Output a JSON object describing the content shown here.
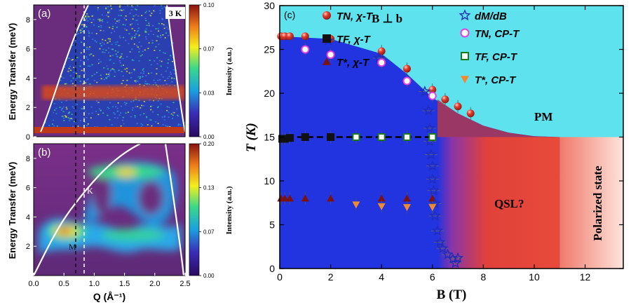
{
  "chart_data": [
    {
      "type": "heatmap",
      "panel_label": "(a)",
      "temperature_tag": "3 K",
      "ylabel": "Energy Transfer (meV)",
      "ylim": [
        0,
        9
      ],
      "yticks": [
        "0",
        "2",
        "4",
        "6",
        "8"
      ],
      "colorbar": {
        "label": "Intensity (a.u.)",
        "ticks": [
          "0.00",
          "0.03",
          "0.07",
          "0.10"
        ],
        "colors": [
          "#2a0a5e",
          "#3a2db8",
          "#1aa0e0",
          "#39d98a",
          "#f4ef1c",
          "#ee7a19",
          "#8a1210"
        ]
      },
      "colors": {
        "background": "#6a2d7e",
        "band": "#d84a1a"
      }
    },
    {
      "type": "heatmap",
      "panel_label": "(b)",
      "xlabel": "Q (Å⁻¹)",
      "ylabel": "Energy Transfer (meV)",
      "xlim": [
        0,
        2.5
      ],
      "ylim": [
        0,
        9
      ],
      "xticks": [
        "0.0",
        "0.5",
        "1.0",
        "1.5",
        "2.0",
        "2.5"
      ],
      "yticks": [
        "2",
        "4",
        "6",
        "8"
      ],
      "annotations": [
        "K",
        "M"
      ],
      "colorbar": {
        "label": "Intensity (a.u.)",
        "ticks": [
          "0.00",
          "0.07",
          "0.13",
          "0.20"
        ],
        "colors": [
          "#2a0a5e",
          "#3a2db8",
          "#1aa0e0",
          "#39d98a",
          "#f4ef1c",
          "#ee7a19",
          "#8a1210"
        ]
      },
      "colors": {
        "background": "#6a2d7e"
      }
    },
    {
      "type": "scatter",
      "panel_label": "(c)",
      "xlabel": "B (T)",
      "ylabel": "T (K)",
      "xlim": [
        0,
        13.5
      ],
      "ylim": [
        0,
        30
      ],
      "xticks": [
        0,
        2,
        4,
        6,
        8,
        10,
        12
      ],
      "yticks": [
        0,
        5,
        10,
        15,
        20,
        25,
        30
      ],
      "field_label": "B ⊥ b",
      "regions": [
        {
          "label": "PM",
          "color": "#5ee3ee"
        },
        {
          "label": "QSL?",
          "color": "#e0413a"
        },
        {
          "label": "Polarized state",
          "color": "#f6b8a8"
        },
        {
          "label": "",
          "color": "#2233e0"
        }
      ],
      "series": [
        {
          "name": "TN, χ-T",
          "marker": "sphere",
          "color": "#e23b2e",
          "x": [
            0.05,
            0.2,
            0.4,
            1.0,
            2.0,
            4.0,
            5.0,
            6.0,
            6.5,
            7.0,
            7.5
          ],
          "y": [
            26.5,
            26.5,
            26.5,
            26.5,
            26.2,
            24.8,
            22.8,
            20.4,
            19.3,
            18.5,
            17.7
          ]
        },
        {
          "name": "TF, χ-T",
          "marker": "square",
          "color": "#111111",
          "x": [
            0.1,
            0.2,
            0.4,
            1.0,
            2.0
          ],
          "y": [
            14.8,
            14.8,
            14.9,
            15.0,
            15.0
          ]
        },
        {
          "name": "T*, χ-T",
          "marker": "triangle-up",
          "color": "#7a1212",
          "x": [
            0.05,
            0.2,
            0.4,
            1.0,
            2.0,
            4.0,
            5.0,
            6.0
          ],
          "y": [
            8.0,
            8.0,
            8.0,
            8.0,
            8.0,
            8.0,
            8.0,
            8.0
          ]
        },
        {
          "name": "dM/dB",
          "marker": "star",
          "color": "#1f2db8",
          "x": [
            1.9,
            3.9,
            5.7,
            5.85,
            5.9,
            5.9,
            5.95,
            6.0,
            6.0,
            6.05,
            6.1,
            6.1,
            6.2,
            6.3,
            6.4,
            6.6,
            6.8,
            6.9,
            7.0
          ],
          "y": [
            26.0,
            24.0,
            20.2,
            18.0,
            16.0,
            14.5,
            13.0,
            11.7,
            10.2,
            8.9,
            7.4,
            6.0,
            4.3,
            3.0,
            2.3,
            1.6,
            1.1,
            0.6,
            1.2
          ]
        },
        {
          "name": "TN, CP-T",
          "marker": "circle-open",
          "color": "#e040e0",
          "x": [
            1.0,
            2.0,
            4.0,
            5.0,
            6.0
          ],
          "y": [
            25.0,
            24.4,
            23.5,
            21.4,
            19.7
          ]
        },
        {
          "name": "TF, CP-T",
          "marker": "square-open",
          "color": "#1a7a1a",
          "x": [
            3.0,
            4.0,
            5.0,
            6.0
          ],
          "y": [
            15.0,
            15.0,
            15.0,
            15.0
          ]
        },
        {
          "name": "T*, CP-T",
          "marker": "triangle-down",
          "color": "#f08a30",
          "x": [
            3.0,
            4.0,
            5.0,
            6.0
          ],
          "y": [
            7.3,
            7.1,
            7.0,
            7.0
          ]
        }
      ]
    }
  ]
}
